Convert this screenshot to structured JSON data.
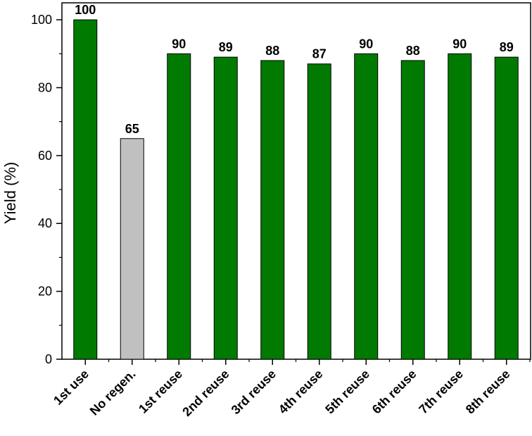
{
  "chart_data": {
    "type": "bar",
    "categories": [
      "1st use",
      "No regen.",
      "1st reuse",
      "2nd reuse",
      "3rd reuse",
      "4th reuse",
      "5th reuse",
      "6th reuse",
      "7th reuse",
      "8th reuse"
    ],
    "values": [
      100,
      65,
      90,
      89,
      88,
      87,
      90,
      88,
      90,
      89
    ],
    "data_labels": [
      "100",
      "65",
      "90",
      "89",
      "88",
      "87",
      "90",
      "88",
      "90",
      "89"
    ],
    "bar_colors": [
      "#007a00",
      "#c0c0c0",
      "#007a00",
      "#007a00",
      "#007a00",
      "#007a00",
      "#007a00",
      "#007a00",
      "#007a00",
      "#007a00"
    ],
    "title": "",
    "xlabel": "",
    "ylabel": "Yield (%)",
    "ylim": [
      0,
      105
    ],
    "yticks": [
      0,
      20,
      40,
      60,
      80,
      100
    ],
    "ytick_labels": [
      "0",
      "20",
      "40",
      "60",
      "80",
      "100"
    ],
    "grid": false,
    "legend": "none"
  }
}
